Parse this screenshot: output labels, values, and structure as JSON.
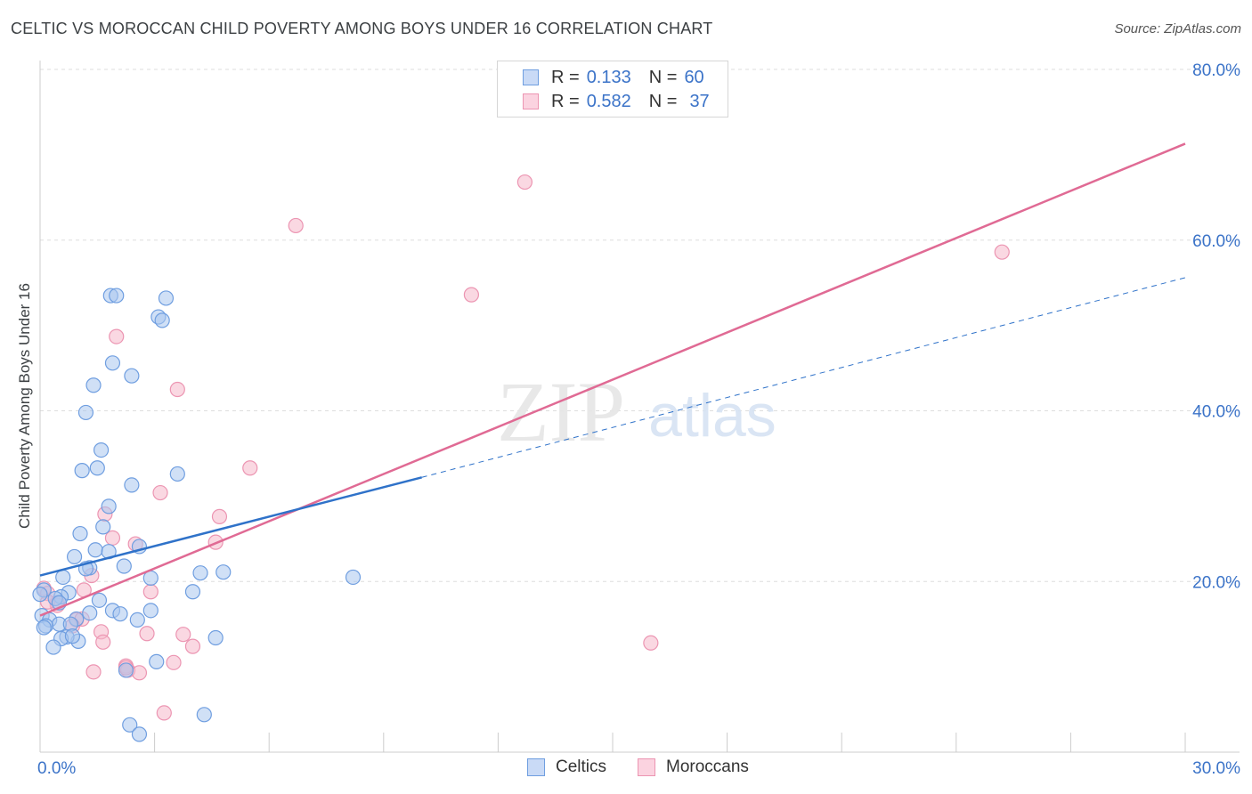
{
  "title": "CELTIC VS MOROCCAN CHILD POVERTY AMONG BOYS UNDER 16 CORRELATION CHART",
  "source": "Source: ZipAtlas.com",
  "watermark": {
    "zip": "ZIP",
    "atlas": "atlas"
  },
  "legend_top": [
    {
      "r_label": "R =",
      "r_value": "0.133",
      "n_label": "N =",
      "n_value": "60"
    },
    {
      "r_label": "R =",
      "r_value": "0.582",
      "n_label": "N =",
      "n_value": "37"
    }
  ],
  "colors": {
    "celtics_fill": "#a9c6ef",
    "celtics_stroke": "#6f9ee0",
    "celtics_line": "#2f72c9",
    "moroccans_fill": "#f6b8cb",
    "moroccans_stroke": "#ec95b2",
    "moroccans_line": "#e06a94",
    "grid": "#dedede",
    "tick_label": "#3b73c8"
  },
  "chart_data": {
    "type": "scatter",
    "title": "CELTIC VS MOROCCAN CHILD POVERTY AMONG BOYS UNDER 16 CORRELATION CHART",
    "xlabel": "",
    "ylabel": "Child Poverty Among Boys Under 16",
    "xlim": [
      0,
      30
    ],
    "ylim": [
      0,
      80
    ],
    "x_ticks": [
      0,
      30
    ],
    "x_tick_labels": [
      "0.0%",
      "30.0%"
    ],
    "y_ticks": [
      20,
      40,
      60,
      80
    ],
    "y_tick_labels": [
      "20.0%",
      "40.0%",
      "60.0%",
      "80.0%"
    ],
    "grid": true,
    "legend_position": "top-center",
    "series": [
      {
        "name": "Celtics",
        "points": [
          [
            1.85,
            53.5
          ],
          [
            2.0,
            53.5
          ],
          [
            3.3,
            53.2
          ],
          [
            3.1,
            51.0
          ],
          [
            3.2,
            50.6
          ],
          [
            1.9,
            45.6
          ],
          [
            2.4,
            44.1
          ],
          [
            1.4,
            43.0
          ],
          [
            1.2,
            39.8
          ],
          [
            1.6,
            35.4
          ],
          [
            1.5,
            33.3
          ],
          [
            1.1,
            33.0
          ],
          [
            3.6,
            32.6
          ],
          [
            2.4,
            31.3
          ],
          [
            1.8,
            28.8
          ],
          [
            1.65,
            26.4
          ],
          [
            1.05,
            25.6
          ],
          [
            2.6,
            24.1
          ],
          [
            1.45,
            23.7
          ],
          [
            1.8,
            23.5
          ],
          [
            0.9,
            22.9
          ],
          [
            1.3,
            21.6
          ],
          [
            1.2,
            21.5
          ],
          [
            2.2,
            21.8
          ],
          [
            4.2,
            21.0
          ],
          [
            4.8,
            21.1
          ],
          [
            8.2,
            20.5
          ],
          [
            0.6,
            20.5
          ],
          [
            2.9,
            20.4
          ],
          [
            0.1,
            19.0
          ],
          [
            0.0,
            18.5
          ],
          [
            0.75,
            18.7
          ],
          [
            0.55,
            18.2
          ],
          [
            0.4,
            18.0
          ],
          [
            0.5,
            17.5
          ],
          [
            1.55,
            17.8
          ],
          [
            4.0,
            18.8
          ],
          [
            1.9,
            16.6
          ],
          [
            2.1,
            16.2
          ],
          [
            1.3,
            16.3
          ],
          [
            0.05,
            16.0
          ],
          [
            0.25,
            15.5
          ],
          [
            0.5,
            15.0
          ],
          [
            0.95,
            15.6
          ],
          [
            0.8,
            15.0
          ],
          [
            2.55,
            15.5
          ],
          [
            2.9,
            16.6
          ],
          [
            0.15,
            14.8
          ],
          [
            0.1,
            14.6
          ],
          [
            1.0,
            13.0
          ],
          [
            0.7,
            13.5
          ],
          [
            0.55,
            13.3
          ],
          [
            0.85,
            13.6
          ],
          [
            4.6,
            13.4
          ],
          [
            0.35,
            12.3
          ],
          [
            3.05,
            10.6
          ],
          [
            2.25,
            9.6
          ],
          [
            2.35,
            3.2
          ],
          [
            2.6,
            2.1
          ],
          [
            4.3,
            4.4
          ]
        ]
      },
      {
        "name": "Moroccans",
        "points": [
          [
            12.7,
            66.8
          ],
          [
            6.7,
            61.7
          ],
          [
            25.2,
            58.6
          ],
          [
            11.3,
            53.6
          ],
          [
            2.0,
            48.7
          ],
          [
            3.6,
            42.5
          ],
          [
            5.5,
            33.3
          ],
          [
            3.15,
            30.4
          ],
          [
            1.7,
            27.9
          ],
          [
            4.7,
            27.6
          ],
          [
            1.9,
            25.1
          ],
          [
            2.5,
            24.4
          ],
          [
            4.6,
            24.6
          ],
          [
            1.35,
            20.7
          ],
          [
            0.1,
            19.2
          ],
          [
            0.2,
            18.6
          ],
          [
            1.15,
            19.0
          ],
          [
            2.9,
            18.8
          ],
          [
            0.45,
            17.5
          ],
          [
            0.45,
            17.2
          ],
          [
            0.95,
            15.5
          ],
          [
            1.1,
            15.6
          ],
          [
            0.85,
            14.8
          ],
          [
            1.6,
            14.1
          ],
          [
            2.8,
            13.9
          ],
          [
            3.75,
            13.8
          ],
          [
            16.0,
            12.8
          ],
          [
            1.65,
            12.9
          ],
          [
            4.0,
            12.4
          ],
          [
            2.25,
            10.1
          ],
          [
            2.3,
            9.6
          ],
          [
            3.5,
            10.5
          ],
          [
            2.6,
            9.3
          ],
          [
            1.4,
            9.4
          ],
          [
            2.25,
            9.9
          ],
          [
            3.25,
            4.6
          ],
          [
            0.2,
            17.6
          ]
        ]
      }
    ],
    "trend_lines": [
      {
        "series": "Celtics",
        "solid_from": [
          0,
          20.7
        ],
        "solid_to": [
          10,
          32.2
        ],
        "dashed_to": [
          30,
          55.6
        ]
      },
      {
        "series": "Moroccans",
        "from": [
          0,
          16.0
        ],
        "to": [
          30,
          71.3
        ]
      }
    ]
  },
  "legend_bottom": [
    {
      "label": "Celtics"
    },
    {
      "label": "Moroccans"
    }
  ]
}
